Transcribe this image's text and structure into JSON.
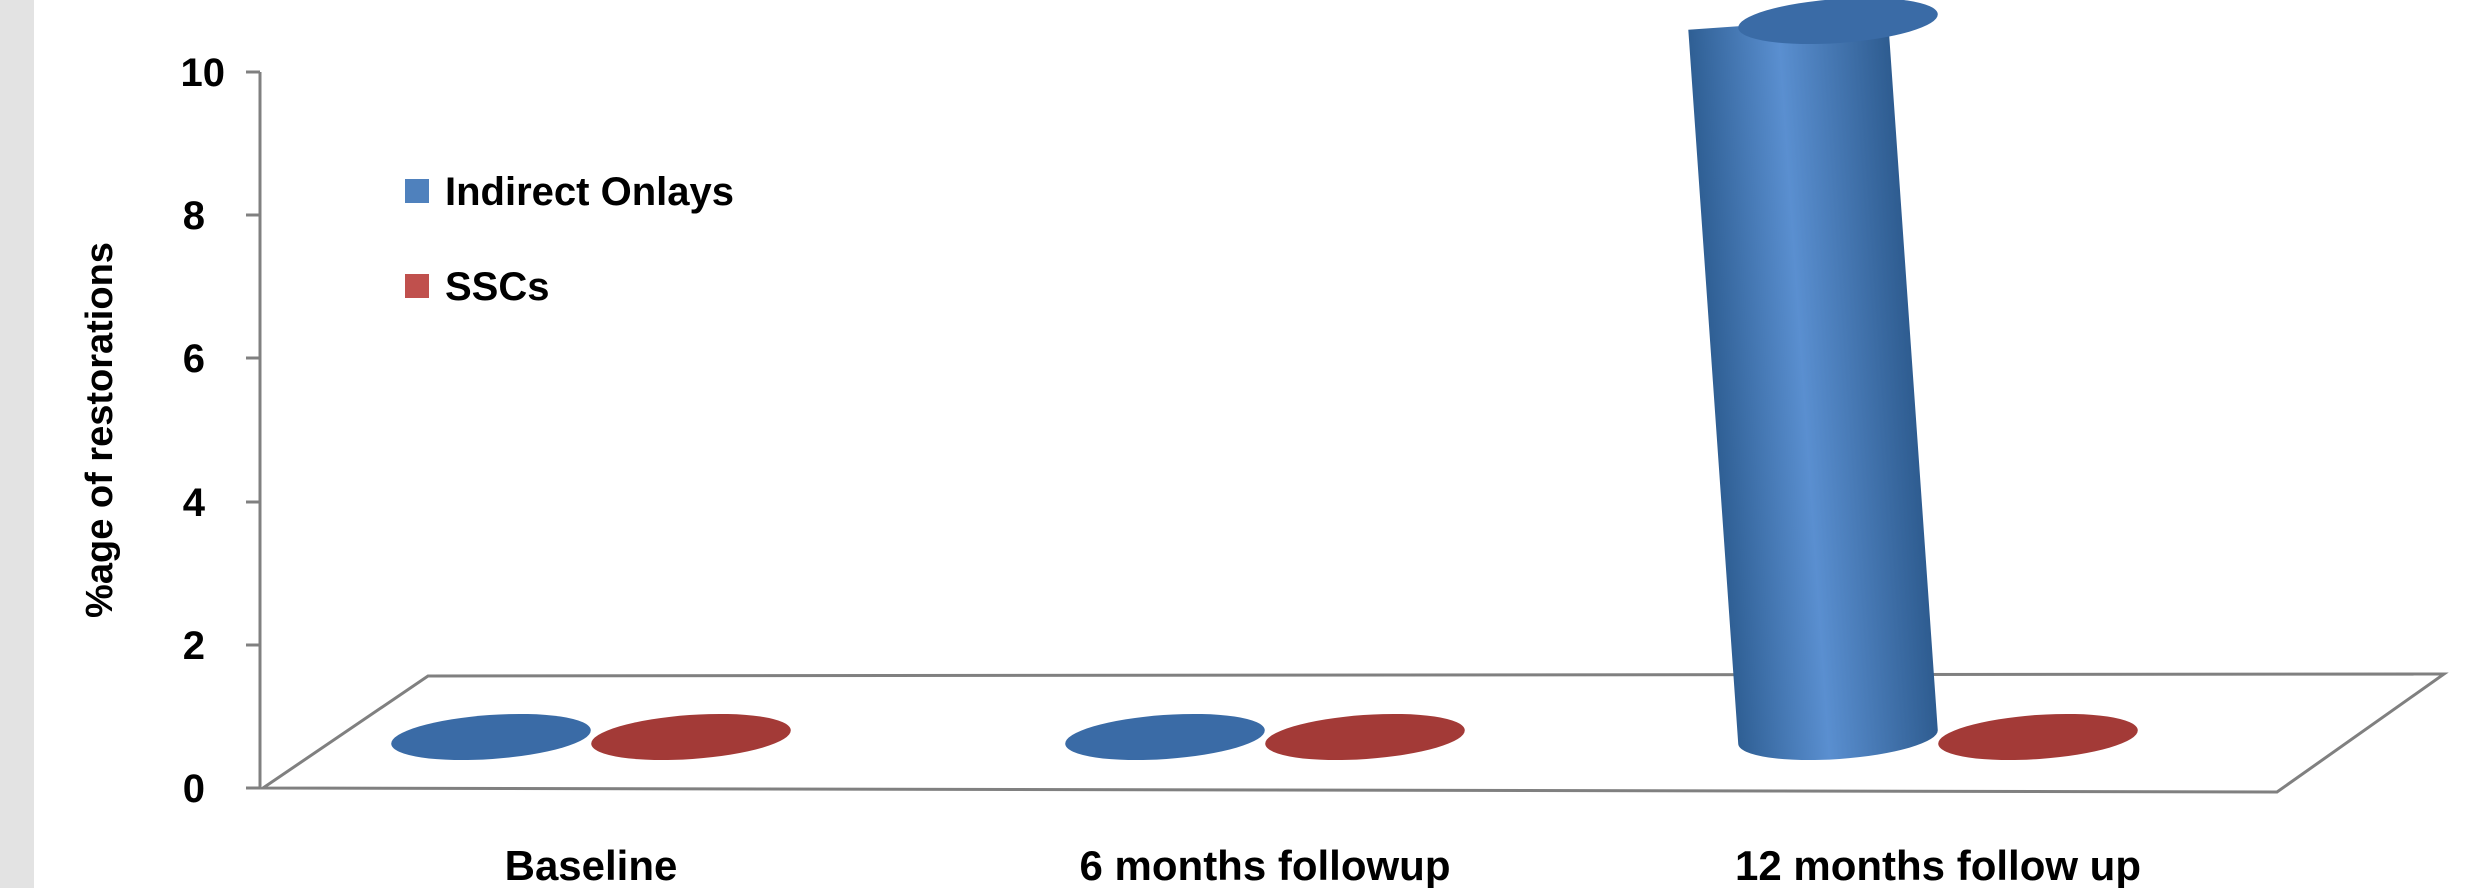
{
  "chart_data": {
    "type": "bar",
    "title": "",
    "xlabel": "",
    "ylabel": "%age of restorations",
    "categories": [
      "Baseline",
      "6 months followup",
      "12 months follow up"
    ],
    "series": [
      {
        "name": "Indirect Onlays",
        "values": [
          0,
          0,
          10
        ],
        "color": "#4f81bd"
      },
      {
        "name": "SSCs",
        "values": [
          0,
          0,
          0
        ],
        "color": "#c0504d"
      }
    ],
    "ylim": [
      0,
      10
    ],
    "yticks": [
      "0",
      "2",
      "4",
      "6",
      "8",
      "10"
    ],
    "legend_position": "top-left",
    "grid": false,
    "style": "3d-cylinder"
  }
}
